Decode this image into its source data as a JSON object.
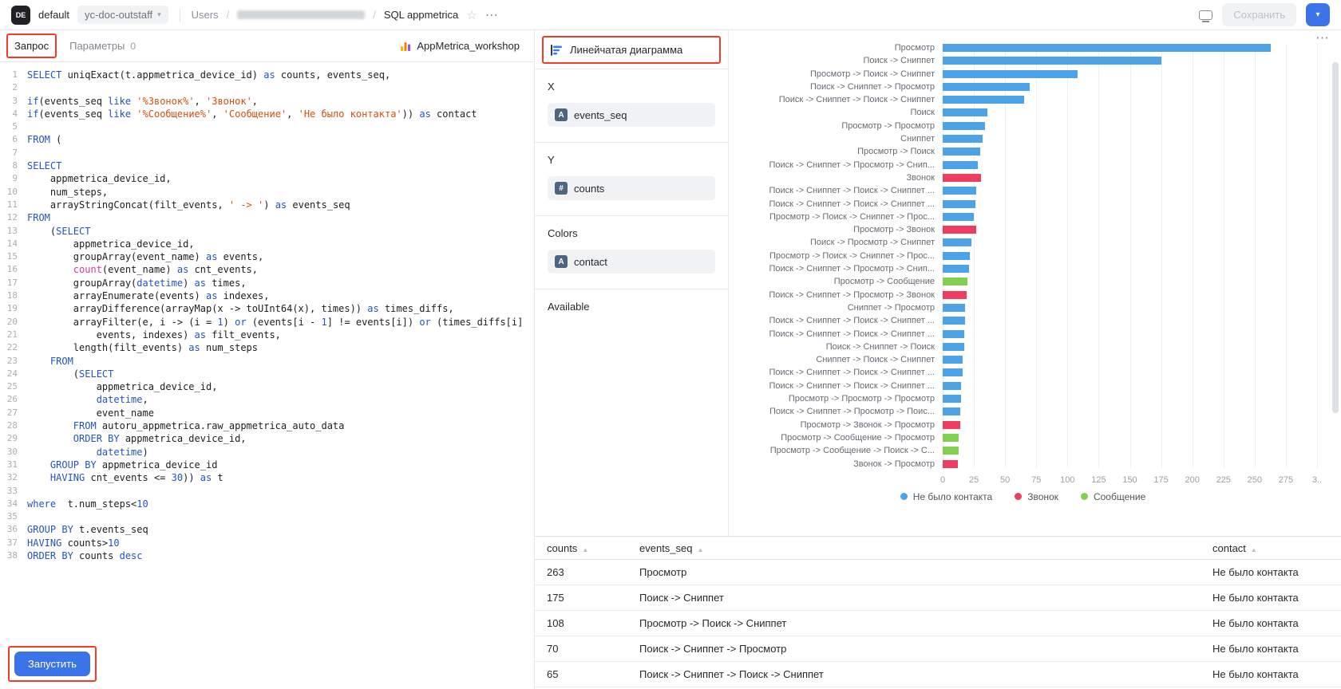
{
  "colors": {
    "accent": "#3b73e8",
    "annotation": "#f43b28",
    "keyword": "#2452c6",
    "string": "#cc5212",
    "func": "#cf3e9c"
  },
  "icons": {
    "chevron_down": "▾",
    "star": "☆",
    "more": "⋯",
    "sort_asc": "▲"
  },
  "topbar": {
    "logo_text": "DE",
    "org_name": "default",
    "folder_name": "yc-doc-outstaff",
    "nav_users": "Users",
    "slash": "/",
    "page_title": "SQL appmetrica",
    "save_label": "Сохранить"
  },
  "editor": {
    "tab_query": "Запрос",
    "tab_params": "Параметры",
    "params_badge": "0",
    "connection_name": "AppMetrica_workshop",
    "run_label": "Запустить",
    "code_lines": [
      [
        [
          "k",
          "SELECT"
        ],
        [
          "t",
          " uniqExact(t.appmetrica_device_id) "
        ],
        [
          "k",
          "as"
        ],
        [
          "t",
          " counts, events_seq,"
        ]
      ],
      [],
      [
        [
          "k",
          "if"
        ],
        [
          "t",
          "(events_seq "
        ],
        [
          "k",
          "like"
        ],
        [
          "t",
          " "
        ],
        [
          "s",
          "'%Звонок%'"
        ],
        [
          "t",
          ", "
        ],
        [
          "s",
          "'Звонок'"
        ],
        [
          "t",
          ","
        ]
      ],
      [
        [
          "k",
          "if"
        ],
        [
          "t",
          "(events_seq "
        ],
        [
          "k",
          "like"
        ],
        [
          "t",
          " "
        ],
        [
          "s",
          "'%Сообщение%'"
        ],
        [
          "t",
          ", "
        ],
        [
          "s",
          "'Сообщение'"
        ],
        [
          "t",
          ", "
        ],
        [
          "s",
          "'Не было контакта'"
        ],
        [
          "t",
          ")) "
        ],
        [
          "k",
          "as"
        ],
        [
          "t",
          " contact"
        ]
      ],
      [],
      [
        [
          "k",
          "FROM"
        ],
        [
          "t",
          " ("
        ]
      ],
      [],
      [
        [
          "k",
          "SELECT"
        ]
      ],
      [
        [
          "t",
          "    appmetrica_device_id,"
        ]
      ],
      [
        [
          "t",
          "    num_steps,"
        ]
      ],
      [
        [
          "t",
          "    arrayStringConcat(filt_events, "
        ],
        [
          "s",
          "' -> '"
        ],
        [
          "t",
          ") "
        ],
        [
          "k",
          "as"
        ],
        [
          "t",
          " events_seq"
        ]
      ],
      [
        [
          "k",
          "FROM"
        ]
      ],
      [
        [
          "t",
          "    ("
        ],
        [
          "k",
          "SELECT"
        ]
      ],
      [
        [
          "t",
          "        appmetrica_device_id,"
        ]
      ],
      [
        [
          "t",
          "        groupArray(event_name) "
        ],
        [
          "k",
          "as"
        ],
        [
          "t",
          " events,"
        ]
      ],
      [
        [
          "t",
          "        "
        ],
        [
          "f",
          "count"
        ],
        [
          "t",
          "(event_name) "
        ],
        [
          "k",
          "as"
        ],
        [
          "t",
          " cnt_events,"
        ]
      ],
      [
        [
          "t",
          "        groupArray("
        ],
        [
          "k",
          "datetime"
        ],
        [
          "t",
          ") "
        ],
        [
          "k",
          "as"
        ],
        [
          "t",
          " times,"
        ]
      ],
      [
        [
          "t",
          "        arrayEnumerate(events) "
        ],
        [
          "k",
          "as"
        ],
        [
          "t",
          " indexes,"
        ]
      ],
      [
        [
          "t",
          "        arrayDifference(arrayMap(x -> toUInt64(x), times)) "
        ],
        [
          "k",
          "as"
        ],
        [
          "t",
          " times_diffs,"
        ]
      ],
      [
        [
          "t",
          "        arrayFilter(e, i -> (i = "
        ],
        [
          "n",
          "1"
        ],
        [
          "t",
          ") "
        ],
        [
          "k",
          "or"
        ],
        [
          "t",
          " (events[i - "
        ],
        [
          "n",
          "1"
        ],
        [
          "t",
          "] != events[i]) "
        ],
        [
          "k",
          "or"
        ],
        [
          "t",
          " (times_diffs[i]"
        ]
      ],
      [
        [
          "t",
          "            events, indexes) "
        ],
        [
          "k",
          "as"
        ],
        [
          "t",
          " filt_events,"
        ]
      ],
      [
        [
          "t",
          "        length(filt_events) "
        ],
        [
          "k",
          "as"
        ],
        [
          "t",
          " num_steps"
        ]
      ],
      [
        [
          "t",
          "    "
        ],
        [
          "k",
          "FROM"
        ]
      ],
      [
        [
          "t",
          "        ("
        ],
        [
          "k",
          "SELECT"
        ]
      ],
      [
        [
          "t",
          "            appmetrica_device_id,"
        ]
      ],
      [
        [
          "t",
          "            "
        ],
        [
          "k",
          "datetime"
        ],
        [
          "t",
          ","
        ]
      ],
      [
        [
          "t",
          "            event_name"
        ]
      ],
      [
        [
          "t",
          "        "
        ],
        [
          "k",
          "FROM"
        ],
        [
          "t",
          " autoru_appmetrica.raw_appmetrica_auto_data"
        ]
      ],
      [
        [
          "t",
          "        "
        ],
        [
          "k",
          "ORDER BY"
        ],
        [
          "t",
          " appmetrica_device_id,"
        ]
      ],
      [
        [
          "t",
          "            "
        ],
        [
          "k",
          "datetime"
        ],
        [
          "t",
          ")"
        ]
      ],
      [
        [
          "t",
          "    "
        ],
        [
          "k",
          "GROUP BY"
        ],
        [
          "t",
          " appmetrica_device_id"
        ]
      ],
      [
        [
          "t",
          "    "
        ],
        [
          "k",
          "HAVING"
        ],
        [
          "t",
          " cnt_events <= "
        ],
        [
          "n",
          "30"
        ],
        [
          "t",
          ")) "
        ],
        [
          "k",
          "as"
        ],
        [
          "t",
          " t"
        ]
      ],
      [],
      [
        [
          "k",
          "where"
        ],
        [
          "t",
          "  t.num_steps<"
        ],
        [
          "n",
          "10"
        ]
      ],
      [],
      [
        [
          "k",
          "GROUP BY"
        ],
        [
          "t",
          " t.events_seq"
        ]
      ],
      [
        [
          "k",
          "HAVING"
        ],
        [
          "t",
          " counts>"
        ],
        [
          "n",
          "10"
        ]
      ],
      [
        [
          "k",
          "ORDER BY"
        ],
        [
          "t",
          " counts "
        ],
        [
          "k",
          "desc"
        ]
      ]
    ]
  },
  "config": {
    "chart_type_label": "Линейчатая диаграмма",
    "sections": [
      {
        "label": "X",
        "fields": [
          {
            "badge": "A",
            "name": "events_seq"
          }
        ]
      },
      {
        "label": "Y",
        "fields": [
          {
            "badge": "#",
            "name": "counts"
          }
        ]
      },
      {
        "label": "Colors",
        "fields": [
          {
            "badge": "A",
            "name": "contact"
          }
        ]
      },
      {
        "label": "Available",
        "fields": []
      }
    ]
  },
  "chart_data": {
    "type": "bar",
    "orientation": "horizontal",
    "xlim": [
      0,
      300
    ],
    "x_tick_labels": [
      "0",
      "25",
      "50",
      "75",
      "100",
      "125",
      "150",
      "175",
      "200",
      "225",
      "250",
      "275",
      "3.."
    ],
    "grid": "vertical",
    "legend_position": "bottom",
    "legend": [
      {
        "label": "Не было контакта",
        "color": "#4da3e8"
      },
      {
        "label": "Звонок",
        "color": "#ee3d60"
      },
      {
        "label": "Сообщение",
        "color": "#82cf52"
      }
    ],
    "bars": [
      {
        "label": "Просмотр",
        "value": 263,
        "group": "Не было контакта"
      },
      {
        "label": "Поиск -> Сниппет",
        "value": 175,
        "group": "Не было контакта"
      },
      {
        "label": "Просмотр -> Поиск -> Сниппет",
        "value": 108,
        "group": "Не было контакта"
      },
      {
        "label": "Поиск -> Сниппет -> Просмотр",
        "value": 70,
        "group": "Не было контакта"
      },
      {
        "label": "Поиск -> Сниппет -> Поиск -> Сниппет",
        "value": 65,
        "group": "Не было контакта"
      },
      {
        "label": "Поиск",
        "value": 36,
        "group": "Не было контакта"
      },
      {
        "label": "Просмотр -> Просмотр",
        "value": 34,
        "group": "Не было контакта"
      },
      {
        "label": "Сниппет",
        "value": 32,
        "group": "Не было контакта"
      },
      {
        "label": "Просмотр -> Поиск",
        "value": 30,
        "group": "Не было контакта"
      },
      {
        "label": "Поиск -> Сниппет -> Просмотр -> Снип...",
        "value": 28,
        "group": "Не было контакта"
      },
      {
        "label": "Звонок",
        "value": 31,
        "group": "Звонок"
      },
      {
        "label": "Поиск -> Сниппет -> Поиск -> Сниппет ...",
        "value": 27,
        "group": "Не было контакта"
      },
      {
        "label": "Поиск -> Сниппет -> Поиск -> Сниппет ...",
        "value": 26,
        "group": "Не было контакта"
      },
      {
        "label": "Просмотр -> Поиск -> Сниппет -> Прос...",
        "value": 25,
        "group": "Не было контакта"
      },
      {
        "label": "Просмотр -> Звонок",
        "value": 27,
        "group": "Звонок"
      },
      {
        "label": "Поиск -> Просмотр -> Сниппет",
        "value": 23,
        "group": "Не было контакта"
      },
      {
        "label": "Просмотр -> Поиск -> Сниппет -> Прос...",
        "value": 22,
        "group": "Не было контакта"
      },
      {
        "label": "Поиск -> Сниппет -> Просмотр -> Снип...",
        "value": 21,
        "group": "Не было контакта"
      },
      {
        "label": "Просмотр -> Сообщение",
        "value": 20,
        "group": "Сообщение"
      },
      {
        "label": "Поиск -> Сниппет -> Просмотр -> Звонок",
        "value": 19,
        "group": "Звонок"
      },
      {
        "label": "Сниппет -> Просмотр",
        "value": 18,
        "group": "Не было контакта"
      },
      {
        "label": "Поиск -> Сниппет -> Поиск -> Сниппет ...",
        "value": 18,
        "group": "Не было контакта"
      },
      {
        "label": "Поиск -> Сниппет -> Поиск -> Сниппет ...",
        "value": 17,
        "group": "Не было контакта"
      },
      {
        "label": "Поиск -> Сниппет -> Поиск",
        "value": 17,
        "group": "Не было контакта"
      },
      {
        "label": "Сниппет -> Поиск -> Сниппет",
        "value": 16,
        "group": "Не было контакта"
      },
      {
        "label": "Поиск -> Сниппет -> Поиск -> Сниппет ...",
        "value": 16,
        "group": "Не было контакта"
      },
      {
        "label": "Поиск -> Сниппет -> Поиск -> Сниппет ...",
        "value": 15,
        "group": "Не было контакта"
      },
      {
        "label": "Просмотр -> Просмотр -> Просмотр",
        "value": 15,
        "group": "Не было контакта"
      },
      {
        "label": "Поиск -> Сниппет -> Просмотр -> Поис...",
        "value": 14,
        "group": "Не было контакта"
      },
      {
        "label": "Просмотр -> Звонок -> Просмотр",
        "value": 14,
        "group": "Звонок"
      },
      {
        "label": "Просмотр -> Сообщение -> Просмотр",
        "value": 13,
        "group": "Сообщение"
      },
      {
        "label": "Просмотр -> Сообщение -> Поиск -> С...",
        "value": 13,
        "group": "Сообщение"
      },
      {
        "label": "Звонок -> Просмотр",
        "value": 12,
        "group": "Звонок"
      }
    ]
  },
  "table": {
    "columns": [
      "counts",
      "events_seq",
      "contact"
    ],
    "rows": [
      [
        "263",
        "Просмотр",
        "Не было контакта"
      ],
      [
        "175",
        "Поиск -> Сниппет",
        "Не было контакта"
      ],
      [
        "108",
        "Просмотр -> Поиск -> Сниппет",
        "Не было контакта"
      ],
      [
        "70",
        "Поиск -> Сниппет -> Просмотр",
        "Не было контакта"
      ],
      [
        "65",
        "Поиск -> Сниппет -> Поиск -> Сниппет",
        "Не было контакта"
      ]
    ]
  }
}
